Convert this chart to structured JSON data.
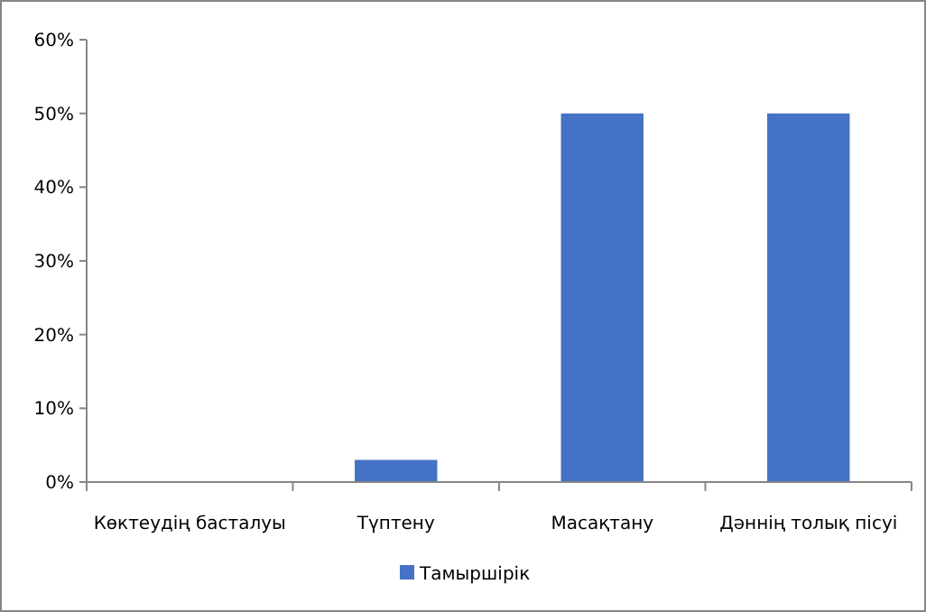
{
  "chart_data": {
    "type": "bar",
    "categories": [
      "Көктеудің басталуы",
      "Түптену",
      "Масақтану",
      "Дәннің толық пісуі"
    ],
    "series": [
      {
        "name": "Тамыршірік",
        "color": "#4472c4",
        "values": [
          0,
          3,
          50,
          50
        ]
      }
    ],
    "ylim": [
      0,
      60
    ],
    "yticks": [
      {
        "value": 0,
        "label": "0%"
      },
      {
        "value": 10,
        "label": "10%"
      },
      {
        "value": 20,
        "label": "20%"
      },
      {
        "value": 30,
        "label": "30%"
      },
      {
        "value": 40,
        "label": "40%"
      },
      {
        "value": 50,
        "label": "50%"
      },
      {
        "value": 60,
        "label": "60%"
      }
    ],
    "grid": false,
    "legend": "bottom"
  }
}
